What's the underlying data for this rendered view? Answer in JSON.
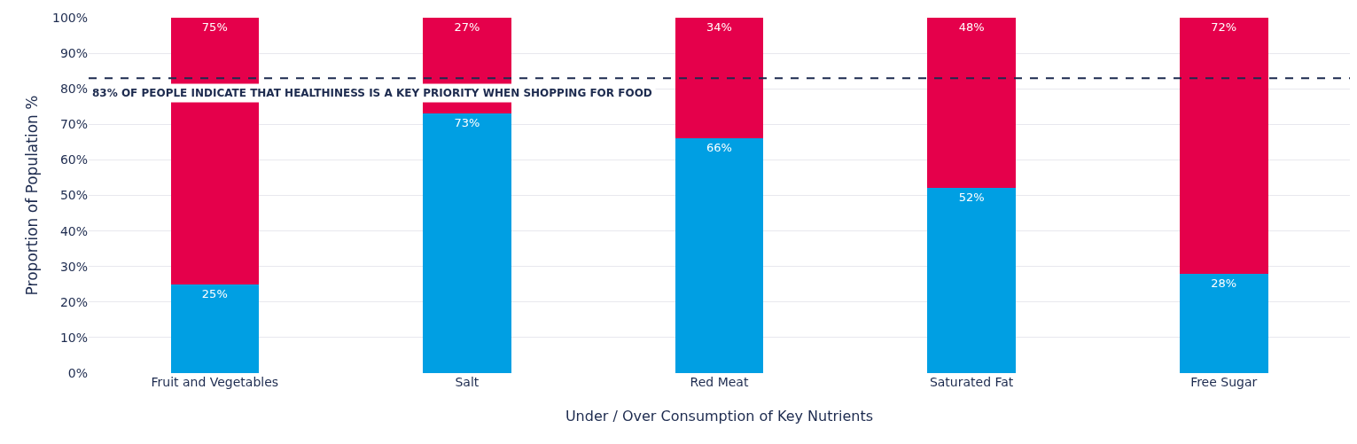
{
  "chart_data": {
    "type": "bar",
    "stacked": true,
    "xlabel": "Under / Over Consumption of Key Nutrients",
    "ylabel": "Proportion of Population %",
    "categories": [
      "Fruit and Vegetables",
      "Salt",
      "Red Meat",
      "Saturated Fat",
      "Free Sugar"
    ],
    "series": [
      {
        "color": "#009fe3",
        "values": [
          25,
          73,
          66,
          52,
          28
        ],
        "value_labels": [
          "25%",
          "73%",
          "66%",
          "52%",
          "28%"
        ]
      },
      {
        "color": "#e5004b",
        "values": [
          75,
          27,
          34,
          48,
          72
        ],
        "value_labels": [
          "75%",
          "27%",
          "34%",
          "48%",
          "72%"
        ]
      }
    ],
    "ylim": [
      0,
      100
    ],
    "yticks": [
      {
        "value": 0,
        "label": "0%"
      },
      {
        "value": 10,
        "label": "10%"
      },
      {
        "value": 20,
        "label": "20%"
      },
      {
        "value": 30,
        "label": "30%"
      },
      {
        "value": 40,
        "label": "40%"
      },
      {
        "value": 50,
        "label": "50%"
      },
      {
        "value": 60,
        "label": "60%"
      },
      {
        "value": 70,
        "label": "70%"
      },
      {
        "value": 80,
        "label": "80%"
      },
      {
        "value": 90,
        "label": "90%"
      },
      {
        "value": 100,
        "label": "100%"
      }
    ],
    "grid": "y",
    "ref_lines": [
      {
        "axis": "y",
        "value": 83,
        "label": "83% OF PEOPLE INDICATE THAT HEALTHINESS IS A KEY PRIORITY WHEN SHOPPING FOR FOOD",
        "color": "#1d2b4f",
        "line_style": "dashed"
      }
    ]
  }
}
